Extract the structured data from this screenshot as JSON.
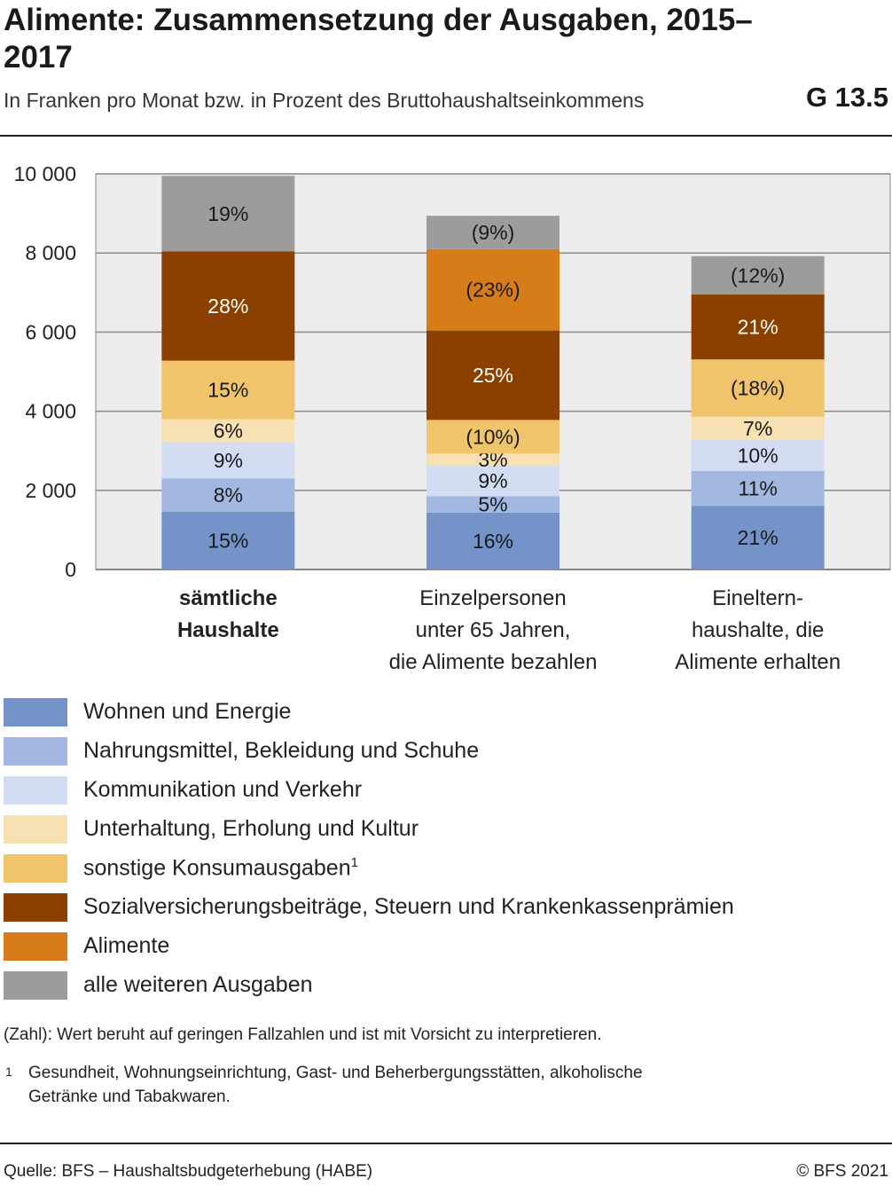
{
  "header": {
    "title": "Alimente: Zusammensetzung der Ausgaben, 2015–2017",
    "subtitle": "In Franken pro Monat bzw. in Prozent des Bruttohaushaltseinkommens",
    "code": "G 13.5"
  },
  "chart_data": {
    "type": "bar",
    "stacked": true,
    "ylim": [
      0,
      10000
    ],
    "yticks": [
      0,
      2000,
      4000,
      6000,
      8000,
      10000
    ],
    "ytick_labels": [
      "0",
      "2 000",
      "4 000",
      "6 000",
      "8 000",
      "10 000"
    ],
    "grid": true,
    "categories": [
      [
        "sämtliche",
        "Haushalte"
      ],
      [
        "Einzelpersonen",
        "unter 65 Jahren,",
        "die Alimente bezahlen"
      ],
      [
        "Eineltern-",
        "haushalte, die",
        "Alimente erhalten"
      ]
    ],
    "highlight_category": 0,
    "series": [
      {
        "name": "Wohnen und Energie",
        "color": "#7393c9",
        "values": [
          1460,
          1440,
          1610
        ],
        "labels": [
          "15%",
          "16%",
          "21%"
        ],
        "label_color": "#1a1a1a"
      },
      {
        "name": "Nahrungsmittel, Bekleidung und Schuhe",
        "color": "#a3b8e0",
        "values": [
          840,
          410,
          880
        ],
        "labels": [
          "8%",
          "5%",
          "11%"
        ],
        "label_color": "#1a1a1a"
      },
      {
        "name": "Kommunikation und Verkehr",
        "color": "#d2dcf3",
        "values": [
          920,
          780,
          780
        ],
        "labels": [
          "9%",
          "9%",
          "10%"
        ],
        "label_color": "#1a1a1a"
      },
      {
        "name": "Unterhaltung, Erholung und Kultur",
        "color": "#f7e0b2",
        "values": [
          580,
          300,
          590
        ],
        "labels": [
          "6%",
          "3%",
          "7%"
        ],
        "label_color": "#1a1a1a"
      },
      {
        "name": "sonstige Konsumausgaben",
        "name_sup": "1",
        "color": "#efc46a",
        "values": [
          1480,
          850,
          1450
        ],
        "labels": [
          "15%",
          "(10%)",
          "(18%)"
        ],
        "label_color": "#1a1a1a"
      },
      {
        "name": "Sozialversicherungsbeiträge, Steuern und Krankenkassenprämien",
        "color": "#8b4000",
        "values": [
          2760,
          2260,
          1640
        ],
        "labels": [
          "28%",
          "25%",
          "21%"
        ],
        "label_color": "#ffffff"
      },
      {
        "name": "Alimente",
        "color": "#d67d1a",
        "values": [
          0,
          2060,
          0
        ],
        "labels": [
          "",
          "(23%)",
          ""
        ],
        "label_color": "#1a1a1a"
      },
      {
        "name": "alle weiteren Ausgaben",
        "color": "#9c9c9c",
        "values": [
          1910,
          840,
          970
        ],
        "labels": [
          "19%",
          "(9%)",
          "(12%)"
        ],
        "label_color": "#1a1a1a"
      }
    ]
  },
  "notes": {
    "caution": "(Zahl): Wert beruht auf geringen Fallzahlen und ist mit Vorsicht zu interpretieren.",
    "footnote_number": "1",
    "footnote_text": "Gesundheit, Wohnungseinrichtung, Gast- und Beherbergungsstätten, alkoholische Getränke und Tabakwaren."
  },
  "footer": {
    "source": "Quelle: BFS – Haushaltsbudgeterhebung (HABE)",
    "copyright": "© BFS 2021"
  }
}
